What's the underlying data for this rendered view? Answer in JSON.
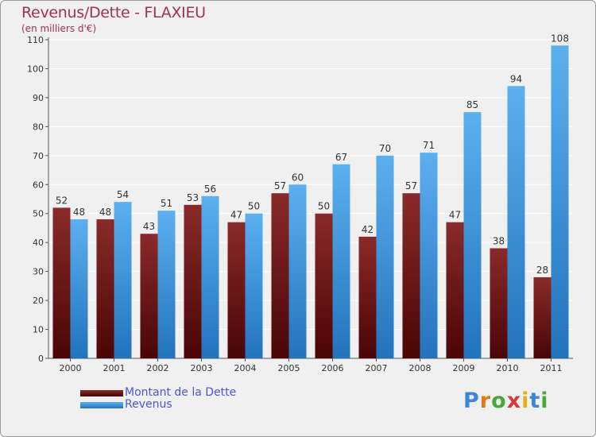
{
  "header": {
    "title": "Revenus/Dette - FLAXIEU",
    "subtitle": "(en milliers d'€)"
  },
  "chart_data": {
    "type": "bar",
    "title": "Revenus/Dette - FLAXIEU",
    "subtitle": "(en milliers d'€)",
    "xlabel": "",
    "ylabel": "",
    "ylim": [
      0,
      110
    ],
    "yticks": [
      0,
      10,
      20,
      30,
      40,
      50,
      60,
      70,
      80,
      90,
      100,
      110
    ],
    "grid": true,
    "legend_position": "bottom-left",
    "categories": [
      "2000",
      "2001",
      "2002",
      "2003",
      "2004",
      "2005",
      "2006",
      "2007",
      "2008",
      "2009",
      "2010",
      "2011"
    ],
    "series": [
      {
        "name": "Montant de la Dette",
        "color": "#7a1a1a",
        "values": [
          52,
          48,
          43,
          53,
          47,
          57,
          50,
          42,
          57,
          47,
          38,
          28
        ]
      },
      {
        "name": "Revenus",
        "color": "#3a94da",
        "values": [
          48,
          54,
          51,
          56,
          50,
          60,
          67,
          70,
          71,
          85,
          94,
          108
        ]
      }
    ]
  },
  "legend": {
    "items": [
      "Montant de la Dette",
      "Revenus"
    ]
  },
  "logo": {
    "text": "Proxiti",
    "letters": [
      "P",
      "r",
      "o",
      "x",
      "i",
      "t",
      "i"
    ],
    "colors": [
      "#3a86d8",
      "#e07a1a",
      "#4aa83a",
      "#d83a3a",
      "#e0b21a",
      "#3a86d8",
      "#4aa83a"
    ]
  }
}
